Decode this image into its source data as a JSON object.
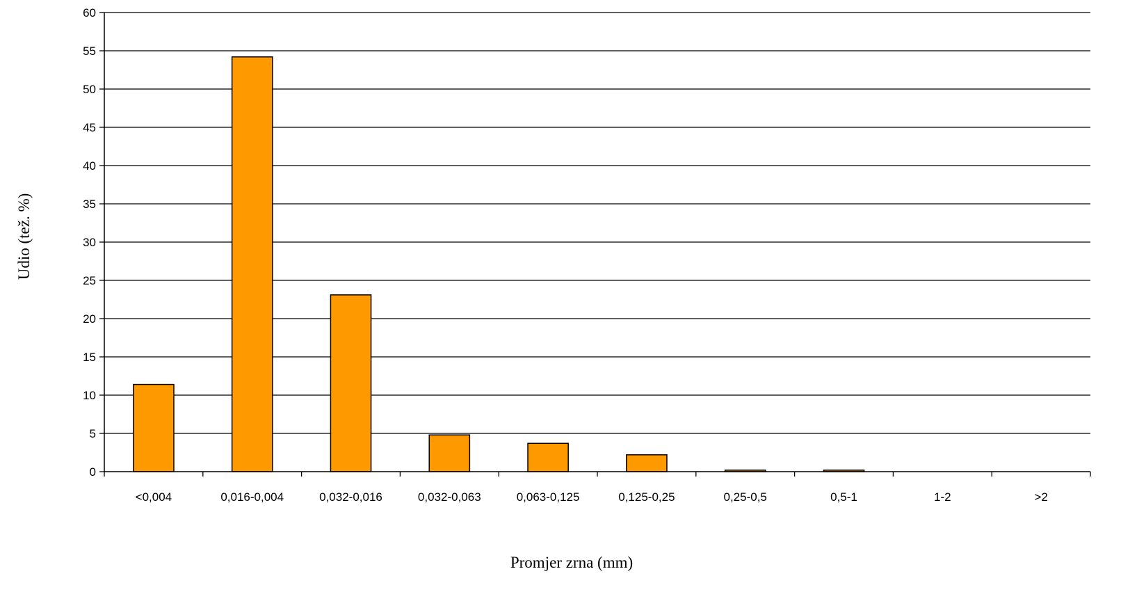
{
  "chart_data": {
    "type": "bar",
    "title": "",
    "xlabel": "Promjer zrna (mm)",
    "ylabel": "Udio (tež. %)",
    "ylim": [
      0,
      60
    ],
    "yticks": [
      0,
      5,
      10,
      15,
      20,
      25,
      30,
      35,
      40,
      45,
      50,
      55,
      60
    ],
    "grid": true,
    "legend": "none",
    "bar_color": "#FF9900",
    "bar_edge_color": "#000000",
    "categories": [
      "<0,004",
      "0,016-0,004",
      "0,032-0,016",
      "0,032-0,063",
      "0,063-0,125",
      "0,125-0,25",
      "0,25-0,5",
      "0,5-1",
      "1-2",
      ">2"
    ],
    "values": [
      11.4,
      54.2,
      23.1,
      4.8,
      3.7,
      2.2,
      0.2,
      0.2,
      0,
      0
    ]
  }
}
